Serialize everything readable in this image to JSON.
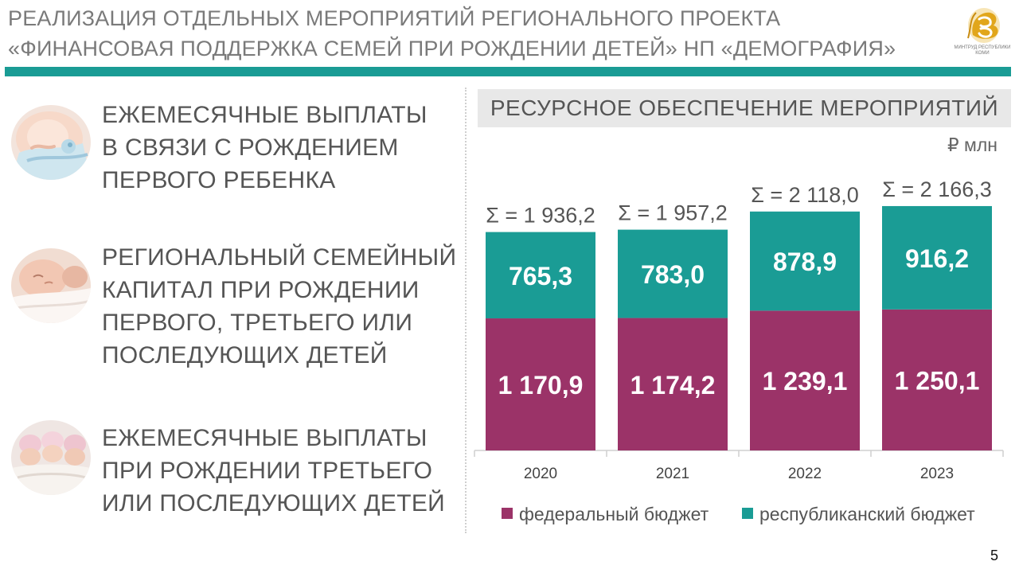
{
  "header": {
    "line1": "РЕАЛИЗАЦИЯ  ОТДЕЛЬНЫХ МЕРОПРИЯТИЙ РЕГИОНАЛЬНОГО ПРОЕКТА",
    "line2": "«ФИНАНСОВАЯ ПОДДЕРЖКА СЕМЕЙ ПРИ РОЖДЕНИИ ДЕТЕЙ» НП «ДЕМОГРАФИЯ»",
    "logo_text": "МИНТРУД РЕСПУБЛИКИ КОМИ",
    "logo_icon": "ministry-emblem-icon"
  },
  "items": [
    {
      "lines": [
        "ЕЖЕМЕСЯЧНЫЕ ВЫПЛАТЫ",
        "В СВЯЗИ С РОЖДЕНИЕМ",
        "ПЕРВОГО РЕБЕНКА"
      ],
      "image": "pregnant-belly-photo"
    },
    {
      "lines": [
        "РЕГИОНАЛЬНЫЙ СЕМЕЙНЫЙ",
        "КАПИТАЛ ПРИ РОЖДЕНИИ",
        "ПЕРВОГО, ТРЕТЬЕГО ИЛИ",
        "ПОСЛЕДУЮЩИХ ДЕТЕЙ"
      ],
      "image": "sleeping-baby-photo"
    },
    {
      "lines": [
        "ЕЖЕМЕСЯЧНЫЕ ВЫПЛАТЫ",
        "ПРИ РОЖДЕНИИ ТРЕТЬЕГО",
        "ИЛИ ПОСЛЕДУЮЩИХ ДЕТЕЙ"
      ],
      "image": "three-babies-photo"
    }
  ],
  "chart_title": "РЕСУРСНОЕ ОБЕСПЕЧЕНИЕ МЕРОПРИЯТИЙ",
  "unit": "₽ млн",
  "page_number": "5",
  "colors": {
    "federal": "#9b3368",
    "republican": "#1a9c95",
    "header_bar": "#1a9c95"
  },
  "chart_data": {
    "type": "bar",
    "stacked": true,
    "categories": [
      "2020",
      "2021",
      "2022",
      "2023"
    ],
    "series": [
      {
        "name": "федеральный бюджет",
        "values": [
          1170.9,
          1174.2,
          1239.1,
          1250.1
        ],
        "labels": [
          "1 170,9",
          "1 174,2",
          "1 239,1",
          "1 250,1"
        ]
      },
      {
        "name": "республиканский бюджет",
        "values": [
          765.3,
          783.0,
          878.9,
          916.2
        ],
        "labels": [
          "765,3",
          "783,0",
          "878,9",
          "916,2"
        ]
      }
    ],
    "totals": [
      "Σ = 1 936,2",
      "Σ = 1 957,2",
      "Σ = 2 118,0",
      "Σ = 2 166,3"
    ],
    "ylim": [
      0,
      2300
    ],
    "grid": false,
    "legend_position": "bottom"
  }
}
